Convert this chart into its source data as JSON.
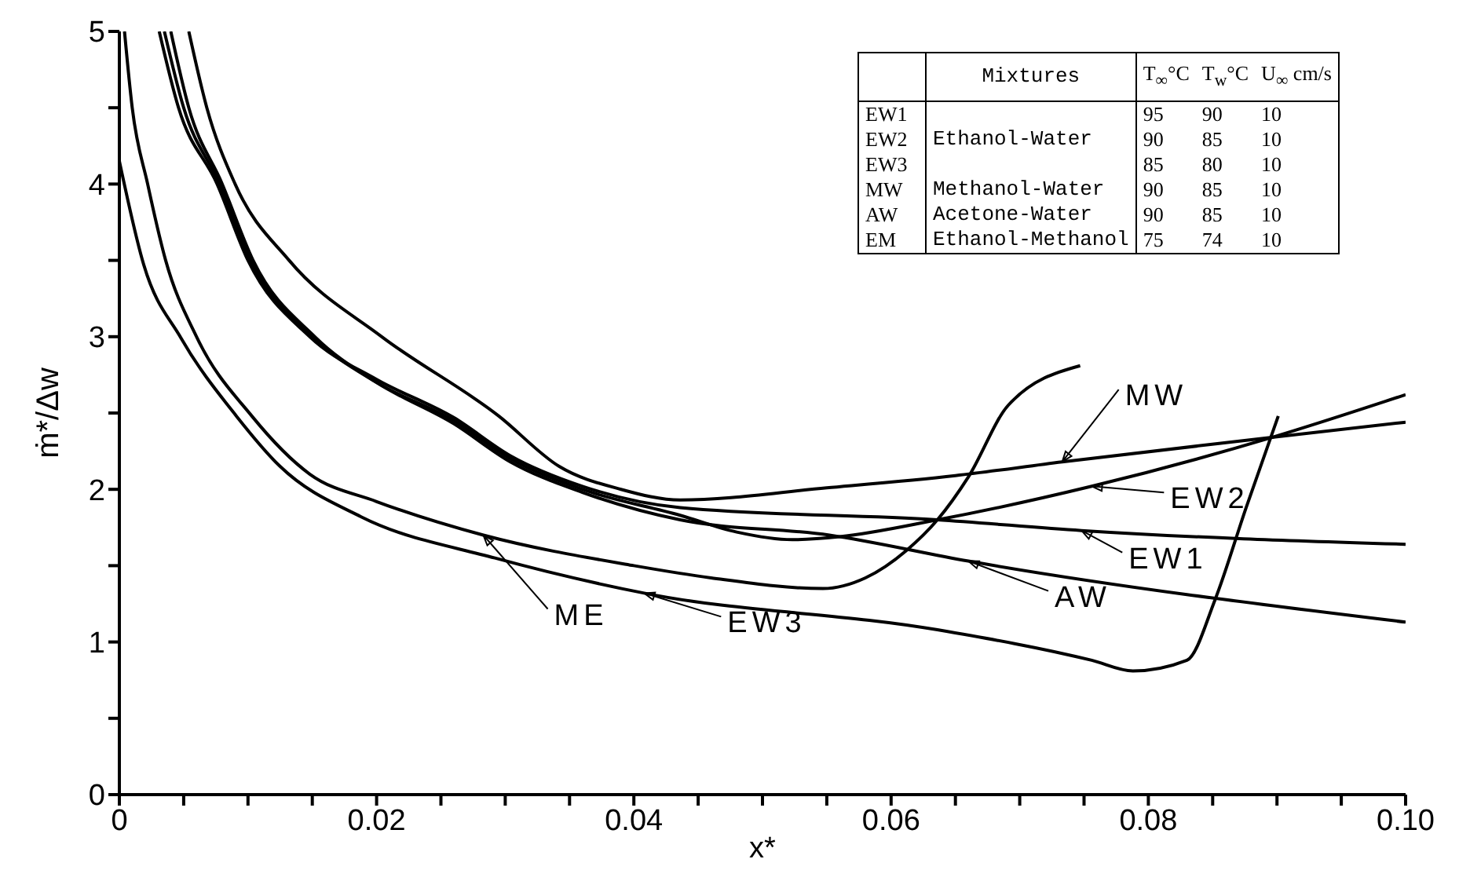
{
  "chart_data": {
    "type": "line",
    "xlabel": "x*",
    "ylabel": "ṁ*/Δw",
    "xlim": [
      0,
      0.1
    ],
    "ylim": [
      0,
      5
    ],
    "xticks": [
      0,
      {
        "value": 0.005,
        "label": null
      },
      {
        "value": 0.01,
        "label": null
      },
      {
        "value": 0.015,
        "label": null
      },
      0.02,
      {
        "value": 0.025,
        "label": null
      },
      {
        "value": 0.03,
        "label": null
      },
      {
        "value": 0.035,
        "label": null
      },
      0.04,
      {
        "value": 0.045,
        "label": null
      },
      {
        "value": 0.05,
        "label": null
      },
      {
        "value": 0.055,
        "label": null
      },
      0.06,
      {
        "value": 0.065,
        "label": null
      },
      {
        "value": 0.07,
        "label": null
      },
      {
        "value": 0.075,
        "label": null
      },
      0.08,
      {
        "value": 0.085,
        "label": null
      },
      {
        "value": 0.09,
        "label": null
      },
      {
        "value": 0.095,
        "label": null
      },
      {
        "value": 0.1,
        "label": "0.10"
      }
    ],
    "yticks": [
      0,
      {
        "value": 0.5,
        "label": null
      },
      1,
      {
        "value": 1.5,
        "label": null
      },
      2,
      {
        "value": 2.5,
        "label": null
      },
      3,
      {
        "value": 3.5,
        "label": null
      },
      4,
      {
        "value": 4.5,
        "label": null
      },
      5
    ],
    "series": [
      {
        "color": "#000000",
        "x": [
          0.0054,
          0.0068,
          0.009,
          0.0132,
          0.0204,
          0.0295,
          0.0342,
          0.039,
          0.0436,
          0.055,
          0.065,
          0.0733,
          0.0896,
          0.1
        ],
        "values": [
          5,
          4.5,
          4,
          3.5,
          3,
          2.48,
          2.15,
          2.0,
          1.93,
          2.01,
          2.09,
          2.18,
          2.34,
          2.44
        ]
      },
      {
        "color": "#000000",
        "x": [
          0.0035,
          0.005,
          0.0078,
          0.0102,
          0.015,
          0.02,
          0.026,
          0.0304,
          0.036,
          0.0436,
          0.048,
          0.0523,
          0.056,
          0.0636,
          0.0756,
          0.0896,
          0.1
        ],
        "values": [
          5,
          4.5,
          4,
          3.5,
          3,
          2.7,
          2.45,
          2.2,
          2.0,
          1.83,
          1.72,
          1.67,
          1.69,
          1.8,
          2.02,
          2.34,
          2.62
        ]
      },
      {
        "color": "#000000",
        "x": [
          0.0031,
          0.0046,
          0.0076,
          0.01,
          0.0148,
          0.02,
          0.026,
          0.0304,
          0.036,
          0.0436,
          0.0636,
          0.0748,
          0.1
        ],
        "values": [
          5,
          4.5,
          4,
          3.5,
          3,
          2.72,
          2.47,
          2.22,
          2.02,
          1.88,
          1.8,
          1.73,
          1.64
        ]
      },
      {
        "color": "#000000",
        "x": [
          0.004,
          0.0054,
          0.008,
          0.0104,
          0.0152,
          0.02,
          0.026,
          0.0304,
          0.036,
          0.0436,
          0.0552,
          0.066,
          0.1
        ],
        "values": [
          5,
          4.5,
          4,
          3.5,
          3,
          2.7,
          2.43,
          2.18,
          1.98,
          1.8,
          1.7,
          1.53,
          1.13
        ]
      },
      {
        "color": "#000000",
        "x": [
          0.0004,
          0.001,
          0.0022,
          0.0036,
          0.006,
          0.0103,
          0.0148,
          0.02,
          0.0283,
          0.04,
          0.046,
          0.0547,
          0.058,
          0.0612,
          0.0636,
          0.066,
          0.0691,
          0.0747
        ],
        "values": [
          5,
          4.5,
          4,
          3.5,
          3,
          2.48,
          2.1,
          1.92,
          1.7,
          1.5,
          1.42,
          1.35,
          1.42,
          1.6,
          1.8,
          2.08,
          2.55,
          2.81
        ]
      },
      {
        "color": "#000000",
        "x": [
          0,
          0.0019,
          0.0048,
          0.0091,
          0.0125,
          0.0188,
          0.0292,
          0.0408,
          0.0636,
          0.0756,
          0.0788,
          0.083,
          0.0852,
          0.0876,
          0.0901
        ],
        "values": [
          4.15,
          3.47,
          2.99,
          2.48,
          2.15,
          1.82,
          1.55,
          1.32,
          1.08,
          0.88,
          0.81,
          0.88,
          1.28,
          1.88,
          2.48
        ]
      }
    ],
    "annotations": [
      {
        "text": "MW",
        "x": 0.0733,
        "y": 2.18
      },
      {
        "text": "EW2",
        "x": 0.0756,
        "y": 2.02
      },
      {
        "text": "EW1",
        "x": 0.0748,
        "y": 1.73
      },
      {
        "text": "AW",
        "x": 0.066,
        "y": 1.53
      },
      {
        "text": "ME",
        "x": 0.0283,
        "y": 1.7
      },
      {
        "text": "EW3",
        "x": 0.0408,
        "y": 1.32
      },
      "Mixtures",
      "T$_{∞}$°C",
      "T$_{w}$°C",
      "U$_{∞}$ cm/s",
      "EW1",
      "EW2",
      "EW3",
      "MW",
      "AW",
      "EM",
      "Ethanol-Water",
      "Methanol-Water",
      "Acetone-Water",
      "Ethanol-Methanol",
      "95",
      "90",
      "10",
      "90",
      "85",
      "10",
      "85",
      "80",
      "10",
      "90",
      "85",
      "10",
      "90",
      "85",
      "10",
      "75",
      "74",
      "10"
    ]
  }
}
